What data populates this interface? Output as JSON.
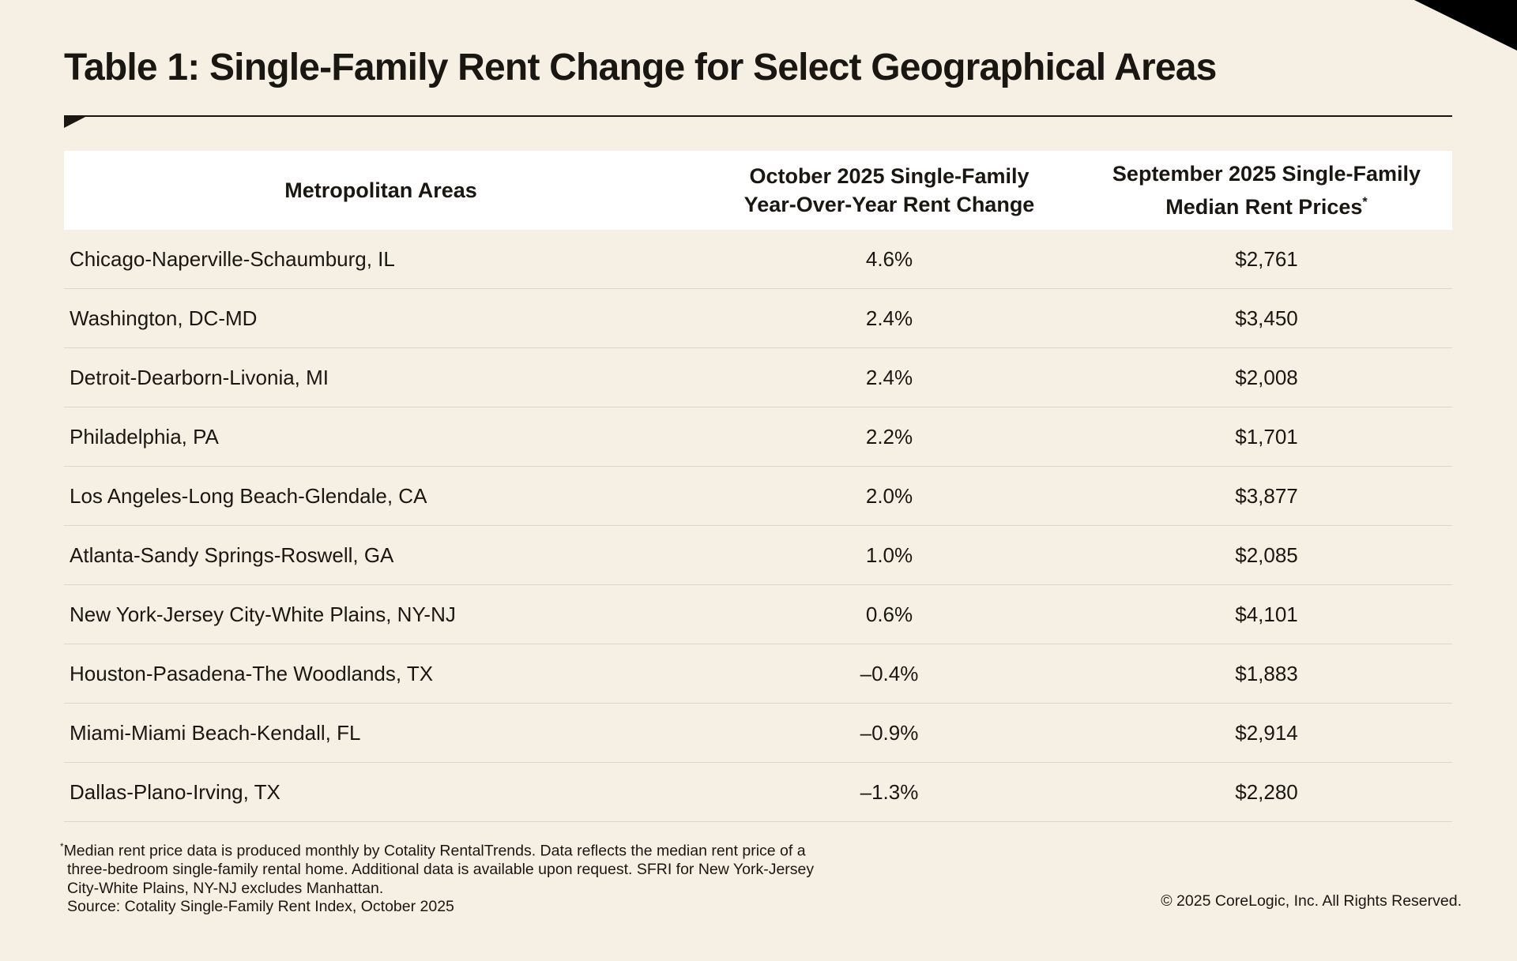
{
  "title": "Table 1: Single-Family Rent Change for Select Geographical Areas",
  "table": {
    "headers": [
      "Metropolitan Areas",
      "October 2025 Single-Family Year-Over-Year Rent Change",
      "September 2025 Single-Family Median Rent Prices"
    ],
    "header_lines": {
      "h2a": "October 2025 Single-Family",
      "h2b": "Year-Over-Year Rent Change",
      "h3a": "September 2025 Single-Family",
      "h3b": "Median Rent Prices",
      "h3_mark": "*"
    },
    "rows": [
      [
        "Chicago-Naperville-Schaumburg, IL",
        "4.6%",
        "$2,761"
      ],
      [
        "Washington, DC-MD",
        "2.4%",
        "$3,450"
      ],
      [
        "Detroit-Dearborn-Livonia, MI",
        "2.4%",
        "$2,008"
      ],
      [
        "Philadelphia, PA",
        "2.2%",
        "$1,701"
      ],
      [
        "Los Angeles-Long Beach-Glendale, CA",
        "2.0%",
        "$3,877"
      ],
      [
        "Atlanta-Sandy Springs-Roswell, GA",
        "1.0%",
        "$2,085"
      ],
      [
        "New York-Jersey City-White Plains, NY-NJ",
        "0.6%",
        "$4,101"
      ],
      [
        "Houston-Pasadena-The Woodlands, TX",
        "–0.4%",
        "$1,883"
      ],
      [
        "Miami-Miami Beach-Kendall, FL",
        "–0.9%",
        "$2,914"
      ],
      [
        "Dallas-Plano-Irving, TX",
        "–1.3%",
        "$2,280"
      ]
    ]
  },
  "footnote": {
    "mark": "*",
    "line1": "Median rent price data is produced monthly by Cotality RentalTrends. Data reflects the median rent price of a",
    "line2": "three-bedroom single-family rental home. Additional data is available upon request. SFRI for New York-Jersey",
    "line3": "City-White Plains, NY-NJ excludes Manhattan.",
    "source": "Source: Cotality Single-Family Rent Index, October 2025"
  },
  "copyright": "© 2025 CoreLogic, Inc. All Rights Reserved.",
  "colors": {
    "background": "#f6efe3",
    "header_bg": "#ffffff",
    "text": "#1a1712"
  }
}
